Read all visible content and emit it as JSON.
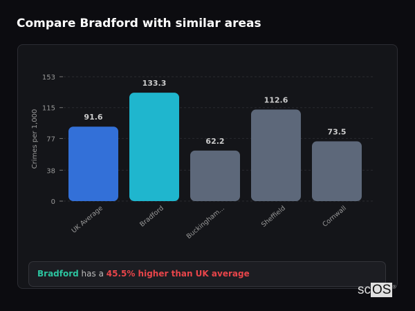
{
  "title": "Compare Bradford with similar areas",
  "chart_data": {
    "type": "bar",
    "categories": [
      "UK Average",
      "Bradford",
      "Buckingham...",
      "Sheffield",
      "Cornwall"
    ],
    "values": [
      91.6,
      133.3,
      62.2,
      112.6,
      73.5
    ],
    "colors": [
      "#3370d8",
      "#1fb6ce",
      "#5d687a",
      "#5d687a",
      "#5d687a"
    ],
    "ylabel": "Crimes per 1,000",
    "yticks": [
      0,
      38,
      77,
      115,
      153
    ],
    "ylim": [
      0,
      153
    ],
    "grid": true
  },
  "note": {
    "area": "Bradford",
    "middle": " has a ",
    "comparison": "45.5% higher than UK average"
  },
  "logo": {
    "a": "sc",
    "b": "OS",
    "mark": "®"
  }
}
